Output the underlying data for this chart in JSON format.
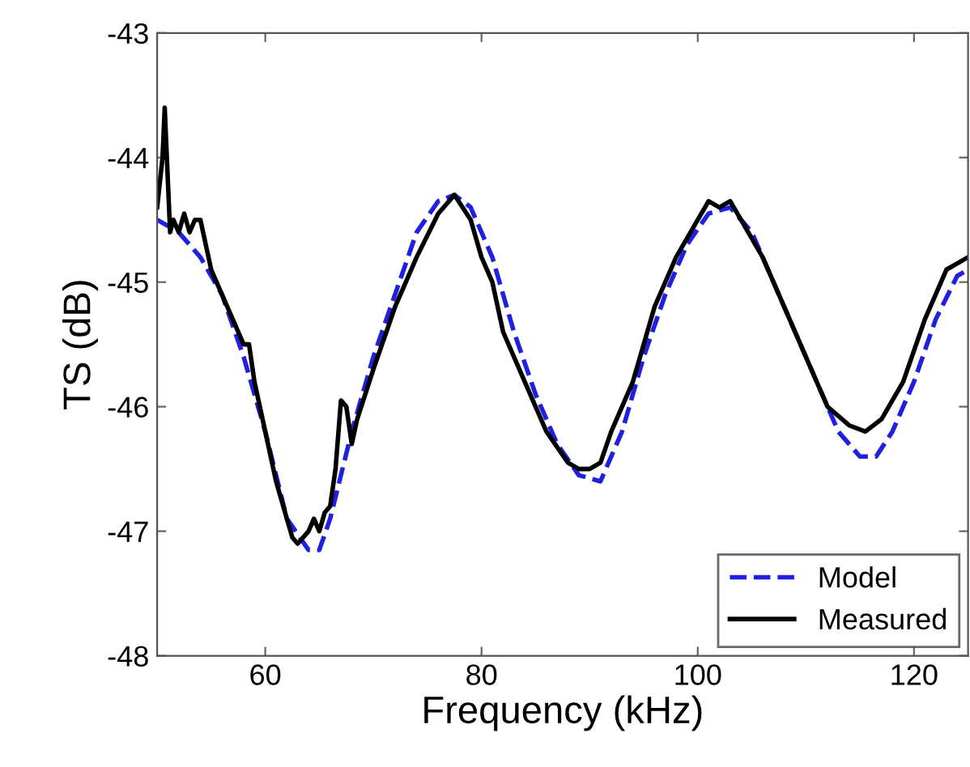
{
  "chart_data": {
    "type": "line",
    "xlabel": "Frequency (kHz)",
    "ylabel": "TS (dB)",
    "xlim": [
      50,
      125
    ],
    "ylim": [
      -48,
      -43
    ],
    "xticks": [
      60,
      80,
      100,
      120
    ],
    "yticks": [
      -48,
      -47,
      -46,
      -45,
      -44,
      -43
    ],
    "grid": false,
    "legend": "bottom right",
    "marker": "none",
    "series": [
      {
        "name": "Model",
        "color": "#2020e0",
        "line_style": "dashed",
        "x": [
          50,
          52,
          54,
          56,
          58,
          60,
          62,
          64,
          65,
          66,
          68,
          70,
          72,
          74,
          76,
          77.5,
          79,
          81,
          83,
          85,
          87,
          89,
          91,
          93,
          95,
          97,
          99,
          101,
          103,
          105,
          107,
          109,
          111,
          113,
          115,
          116.5,
          118,
          120,
          122,
          124,
          125
        ],
        "values": [
          -44.5,
          -44.6,
          -44.8,
          -45.1,
          -45.6,
          -46.2,
          -46.9,
          -47.15,
          -47.15,
          -46.9,
          -46.2,
          -45.6,
          -45.1,
          -44.6,
          -44.35,
          -44.3,
          -44.4,
          -44.8,
          -45.4,
          -45.9,
          -46.3,
          -46.55,
          -46.6,
          -46.2,
          -45.6,
          -45.1,
          -44.7,
          -44.45,
          -44.4,
          -44.6,
          -45.0,
          -45.4,
          -45.8,
          -46.2,
          -46.4,
          -46.4,
          -46.2,
          -45.8,
          -45.3,
          -44.95,
          -44.9
        ]
      },
      {
        "name": "Measured",
        "color": "#000000",
        "line_style": "solid",
        "x": [
          50,
          50.5,
          50.7,
          51,
          51.2,
          51.5,
          52,
          52.5,
          53,
          53.5,
          54,
          54.5,
          55,
          56,
          57,
          58,
          58.5,
          59,
          60,
          61,
          62,
          62.5,
          63,
          64,
          64.5,
          65,
          65.5,
          66,
          66.5,
          67,
          67.5,
          68,
          68.5,
          70,
          72,
          74,
          76,
          77.5,
          79,
          80,
          81,
          82,
          84,
          86,
          88,
          89,
          90,
          91,
          92,
          94,
          96,
          98,
          100,
          101,
          102,
          103,
          104,
          106,
          108,
          110,
          112,
          114,
          115.5,
          117,
          119,
          121,
          123,
          124,
          125
        ],
        "values": [
          -44.4,
          -44.0,
          -43.6,
          -44.2,
          -44.6,
          -44.5,
          -44.6,
          -44.45,
          -44.6,
          -44.5,
          -44.5,
          -44.7,
          -44.9,
          -45.1,
          -45.3,
          -45.5,
          -45.5,
          -45.8,
          -46.2,
          -46.6,
          -46.9,
          -47.05,
          -47.1,
          -47.0,
          -46.9,
          -47.0,
          -46.85,
          -46.8,
          -46.5,
          -45.95,
          -46.0,
          -46.3,
          -46.1,
          -45.7,
          -45.2,
          -44.8,
          -44.45,
          -44.3,
          -44.5,
          -44.8,
          -45.0,
          -45.4,
          -45.8,
          -46.2,
          -46.45,
          -46.5,
          -46.5,
          -46.45,
          -46.2,
          -45.8,
          -45.2,
          -44.8,
          -44.5,
          -44.35,
          -44.4,
          -44.35,
          -44.5,
          -44.8,
          -45.2,
          -45.6,
          -46.0,
          -46.15,
          -46.2,
          -46.1,
          -45.8,
          -45.3,
          -44.9,
          -44.85,
          -44.8
        ]
      }
    ]
  }
}
